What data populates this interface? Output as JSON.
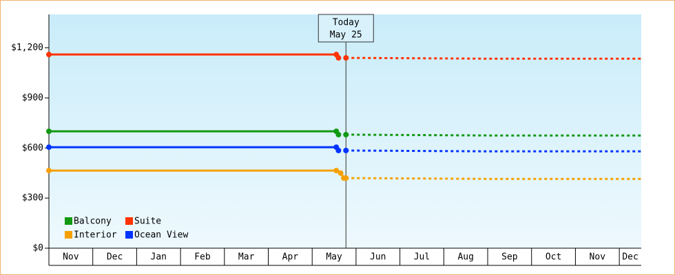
{
  "chart_data": {
    "type": "line",
    "categories": [
      "Nov",
      "Dec",
      "Jan",
      "Feb",
      "Mar",
      "Apr",
      "May",
      "Jun",
      "Jul",
      "Aug",
      "Sep",
      "Oct",
      "Nov",
      "Dec"
    ],
    "xlim": [
      0,
      13.5
    ],
    "ylim": [
      0,
      1400
    ],
    "yticks": [
      {
        "value": 0,
        "label": "$0"
      },
      {
        "value": 300,
        "label": "$300"
      },
      {
        "value": 600,
        "label": "$600"
      },
      {
        "value": 900,
        "label": "$900"
      },
      {
        "value": 1200,
        "label": "$1,200"
      }
    ],
    "annotation": {
      "x": 6.77,
      "lines": [
        "Today",
        "May 25"
      ]
    },
    "series": [
      {
        "name": "Balcony",
        "color": "#119911",
        "x": [
          0,
          6.55,
          6.6
        ],
        "values": [
          700,
          700,
          680
        ],
        "forecast_x": [
          6.77,
          10,
          13.5
        ],
        "forecast_values": [
          680,
          675,
          675
        ]
      },
      {
        "name": "Suite",
        "color": "#ff3300",
        "x": [
          0,
          6.55,
          6.6
        ],
        "values": [
          1160,
          1160,
          1140
        ],
        "forecast_x": [
          6.77,
          10,
          13.5
        ],
        "forecast_values": [
          1140,
          1135,
          1135
        ]
      },
      {
        "name": "Interior",
        "color": "#f5a000",
        "x": [
          0,
          6.55,
          6.65,
          6.72
        ],
        "values": [
          465,
          465,
          450,
          420
        ],
        "forecast_x": [
          6.77,
          10,
          13.5
        ],
        "forecast_values": [
          420,
          415,
          415
        ]
      },
      {
        "name": "Ocean View",
        "color": "#0033ff",
        "x": [
          0,
          6.55,
          6.6
        ],
        "values": [
          605,
          605,
          585
        ],
        "forecast_x": [
          6.77,
          10,
          13.5
        ],
        "forecast_values": [
          585,
          580,
          580
        ]
      }
    ]
  }
}
